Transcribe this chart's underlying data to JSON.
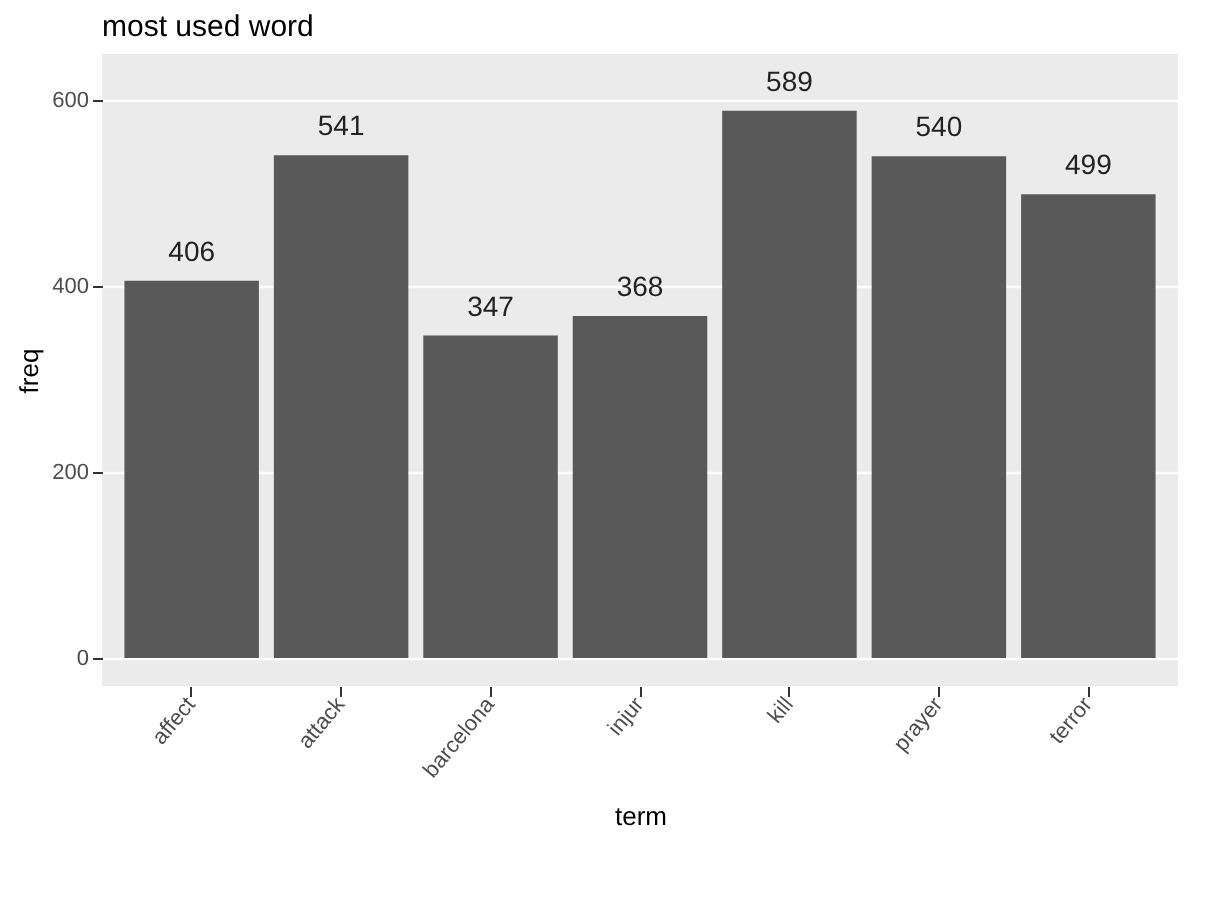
{
  "chart_data": {
    "type": "bar",
    "title": "most used word",
    "xlabel": "term",
    "ylabel": "freq",
    "categories": [
      "affect",
      "attack",
      "barcelona",
      "injur",
      "kill",
      "prayer",
      "terror"
    ],
    "values": [
      406,
      541,
      347,
      368,
      589,
      540,
      499
    ],
    "color": "#595959",
    "ylim": [
      -30,
      650
    ],
    "yticks": [
      0,
      200,
      400,
      600
    ],
    "grid": true,
    "data_labels": true
  }
}
